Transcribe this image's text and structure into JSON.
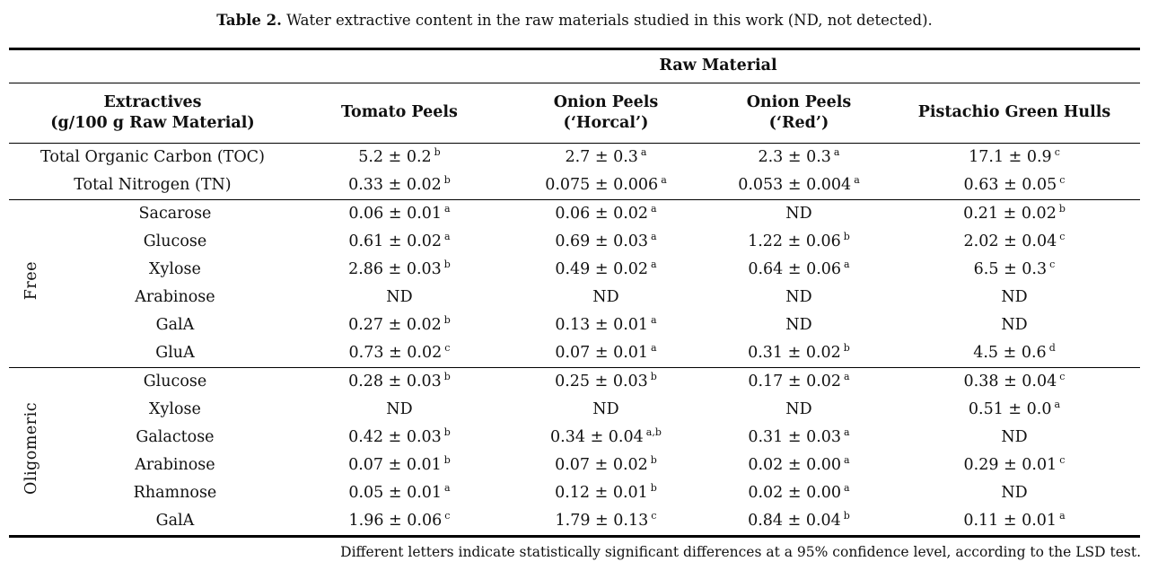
{
  "colors": {
    "text": "#111111",
    "rule": "#000000",
    "background": "#ffffff"
  },
  "caption": {
    "label": "Table 2.",
    "text": "Water extractive content in the raw materials studied in this work (ND, not detected)."
  },
  "table": {
    "span_header": "Raw Material",
    "stub_header": {
      "l1": "Extractives",
      "l2": "(g/100 g Raw Material)"
    },
    "columns": [
      {
        "l1": "Tomato Peels",
        "l2": ""
      },
      {
        "l1": "Onion Peels",
        "l2": "(‘Horcal’)"
      },
      {
        "l1": "Onion Peels",
        "l2": "(‘Red’)"
      },
      {
        "l1": "Pistachio Green Hulls",
        "l2": ""
      }
    ],
    "sections": [
      {
        "group": "",
        "rows": [
          {
            "name": "Total Organic Carbon (TOC)",
            "cells": [
              {
                "v": "5.2 ± 0.2",
                "sup": "b"
              },
              {
                "v": "2.7 ± 0.3",
                "sup": "a"
              },
              {
                "v": "2.3 ± 0.3",
                "sup": "a"
              },
              {
                "v": "17.1 ± 0.9",
                "sup": "c"
              }
            ]
          },
          {
            "name": "Total Nitrogen (TN)",
            "cells": [
              {
                "v": "0.33 ± 0.02",
                "sup": "b"
              },
              {
                "v": "0.075 ± 0.006",
                "sup": "a"
              },
              {
                "v": "0.053 ± 0.004",
                "sup": "a"
              },
              {
                "v": "0.63 ± 0.05",
                "sup": "c"
              }
            ]
          }
        ]
      },
      {
        "group": "Free",
        "rows": [
          {
            "name": "Sacarose",
            "cells": [
              {
                "v": "0.06 ± 0.01",
                "sup": "a"
              },
              {
                "v": "0.06 ± 0.02",
                "sup": "a"
              },
              {
                "v": "ND",
                "sup": ""
              },
              {
                "v": "0.21 ± 0.02",
                "sup": "b"
              }
            ]
          },
          {
            "name": "Glucose",
            "cells": [
              {
                "v": "0.61 ± 0.02",
                "sup": "a"
              },
              {
                "v": "0.69 ± 0.03",
                "sup": "a"
              },
              {
                "v": "1.22 ± 0.06",
                "sup": "b"
              },
              {
                "v": "2.02 ± 0.04",
                "sup": "c"
              }
            ]
          },
          {
            "name": "Xylose",
            "cells": [
              {
                "v": "2.86 ± 0.03",
                "sup": "b"
              },
              {
                "v": "0.49 ± 0.02",
                "sup": "a"
              },
              {
                "v": "0.64 ± 0.06",
                "sup": "a"
              },
              {
                "v": "6.5 ± 0.3",
                "sup": "c"
              }
            ]
          },
          {
            "name": "Arabinose",
            "cells": [
              {
                "v": "ND",
                "sup": ""
              },
              {
                "v": "ND",
                "sup": ""
              },
              {
                "v": "ND",
                "sup": ""
              },
              {
                "v": "ND",
                "sup": ""
              }
            ]
          },
          {
            "name": "GalA",
            "cells": [
              {
                "v": "0.27 ± 0.02",
                "sup": "b"
              },
              {
                "v": "0.13 ± 0.01",
                "sup": "a"
              },
              {
                "v": "ND",
                "sup": ""
              },
              {
                "v": "ND",
                "sup": ""
              }
            ]
          },
          {
            "name": "GluA",
            "cells": [
              {
                "v": "0.73 ± 0.02",
                "sup": "c"
              },
              {
                "v": "0.07 ± 0.01",
                "sup": "a"
              },
              {
                "v": "0.31 ± 0.02",
                "sup": "b"
              },
              {
                "v": "4.5 ± 0.6",
                "sup": "d"
              }
            ]
          }
        ]
      },
      {
        "group": "Oligomeric",
        "rows": [
          {
            "name": "Glucose",
            "cells": [
              {
                "v": "0.28 ± 0.03",
                "sup": "b"
              },
              {
                "v": "0.25 ± 0.03",
                "sup": "b"
              },
              {
                "v": "0.17 ± 0.02",
                "sup": "a"
              },
              {
                "v": "0.38 ± 0.04",
                "sup": "c"
              }
            ]
          },
          {
            "name": "Xylose",
            "cells": [
              {
                "v": "ND",
                "sup": ""
              },
              {
                "v": "ND",
                "sup": ""
              },
              {
                "v": "ND",
                "sup": ""
              },
              {
                "v": "0.51 ± 0.0",
                "sup": "a"
              }
            ]
          },
          {
            "name": "Galactose",
            "cells": [
              {
                "v": "0.42 ± 0.03",
                "sup": "b"
              },
              {
                "v": "0.34 ± 0.04",
                "sup": "a,b"
              },
              {
                "v": "0.31 ± 0.03",
                "sup": "a"
              },
              {
                "v": "ND",
                "sup": ""
              }
            ]
          },
          {
            "name": "Arabinose",
            "cells": [
              {
                "v": "0.07 ± 0.01",
                "sup": "b"
              },
              {
                "v": "0.07 ± 0.02",
                "sup": "b"
              },
              {
                "v": "0.02 ± 0.00",
                "sup": "a"
              },
              {
                "v": "0.29 ± 0.01",
                "sup": "c"
              }
            ]
          },
          {
            "name": "Rhamnose",
            "cells": [
              {
                "v": "0.05 ± 0.01",
                "sup": "a"
              },
              {
                "v": "0.12 ± 0.01",
                "sup": "b"
              },
              {
                "v": "0.02 ± 0.00",
                "sup": "a"
              },
              {
                "v": "ND",
                "sup": ""
              }
            ]
          },
          {
            "name": "GalA",
            "cells": [
              {
                "v": "1.96 ± 0.06",
                "sup": "c"
              },
              {
                "v": "1.79 ± 0.13",
                "sup": "c"
              },
              {
                "v": "0.84 ± 0.04",
                "sup": "b"
              },
              {
                "v": "0.11 ± 0.01",
                "sup": "a"
              }
            ]
          }
        ]
      }
    ]
  },
  "footnote": "Different letters indicate statistically significant differences at a 95% confidence level, according to the LSD test."
}
